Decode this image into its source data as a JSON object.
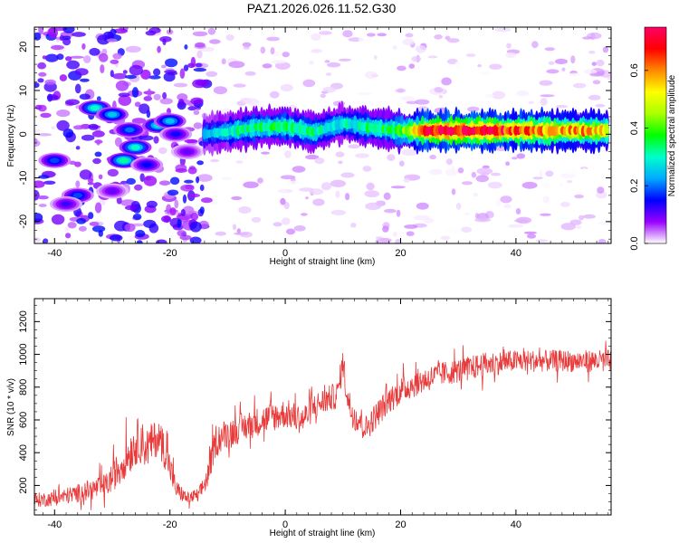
{
  "title": "PAZ1.2026.026.11.52.G30",
  "chart_data": [
    {
      "type": "heatmap",
      "title": "PAZ1.2026.026.11.52.G30",
      "xlabel": "Height of straight line (km)",
      "ylabel": "Frequency (Hz)",
      "xlim": [
        -43.5,
        56.5
      ],
      "ylim": [
        -25,
        24.5
      ],
      "xticks": [
        -40,
        -20,
        0,
        20,
        40
      ],
      "xtick_labels": [
        "-40",
        "-20",
        "0",
        "20",
        "40"
      ],
      "yticks": [
        -20,
        -10,
        0,
        10,
        20
      ],
      "ytick_labels": [
        "-20",
        "-10",
        "0",
        "10",
        "20"
      ],
      "colorbar": {
        "label": "Normalized spectral amplitude",
        "range": [
          0,
          0.75
        ],
        "ticks": [
          0.0,
          0.2,
          0.4,
          0.6
        ],
        "tick_labels": [
          "0.0",
          "0.2",
          "0.4",
          "0.6"
        ],
        "colors": [
          "#ffffff",
          "#9900ff",
          "#0000ff",
          "#00aaff",
          "#00ffcc",
          "#00ff00",
          "#aaff00",
          "#ffff00",
          "#ff8800",
          "#ff0000",
          "#ff0066"
        ]
      },
      "ridge": {
        "description": "dominant frequency trace",
        "points": [
          [
            -14,
            0
          ],
          [
            -10,
            0.6
          ],
          [
            -5,
            1.5
          ],
          [
            0,
            1.8
          ],
          [
            5,
            0.5
          ],
          [
            10,
            2.5
          ],
          [
            15,
            1.5
          ],
          [
            20,
            0.8
          ],
          [
            25,
            0.8
          ],
          [
            35,
            0.8
          ],
          [
            45,
            0.8
          ],
          [
            56,
            0.8
          ]
        ],
        "peak_amplitude": [
          [
            -14,
            0.22
          ],
          [
            -8,
            0.32
          ],
          [
            0,
            0.35
          ],
          [
            10,
            0.28
          ],
          [
            20,
            0.38
          ],
          [
            25,
            0.7
          ],
          [
            35,
            0.72
          ],
          [
            45,
            0.6
          ],
          [
            56,
            0.55
          ]
        ]
      },
      "blobs": [
        {
          "x": -33,
          "y": 6,
          "amp": 0.3
        },
        {
          "x": -30,
          "y": 4.5,
          "amp": 0.25
        },
        {
          "x": -27,
          "y": 1,
          "amp": 0.2
        },
        {
          "x": -22,
          "y": 2,
          "amp": 0.28
        },
        {
          "x": -20,
          "y": 3,
          "amp": 0.25
        },
        {
          "x": -26,
          "y": -3,
          "amp": 0.3
        },
        {
          "x": -28,
          "y": -6,
          "amp": 0.32
        },
        {
          "x": -40,
          "y": -6,
          "amp": 0.18
        },
        {
          "x": -36,
          "y": -14,
          "amp": 0.18
        },
        {
          "x": -38,
          "y": -16,
          "amp": 0.12
        },
        {
          "x": -30,
          "y": -13,
          "amp": 0.1
        },
        {
          "x": -24,
          "y": -7,
          "amp": 0.15
        },
        {
          "x": -19,
          "y": 0,
          "amp": 0.14
        },
        {
          "x": -17,
          "y": -4,
          "amp": 0.1
        }
      ]
    },
    {
      "type": "line",
      "xlabel": "Height of straight line (km)",
      "ylabel": "SNR (10 * v/v)",
      "xlim": [
        -43.5,
        56.5
      ],
      "ylim": [
        20,
        1340
      ],
      "xticks": [
        -40,
        -20,
        0,
        20,
        40
      ],
      "xtick_labels": [
        "-40",
        "-20",
        "0",
        "20",
        "40"
      ],
      "yticks": [
        200,
        400,
        600,
        800,
        1000,
        1200
      ],
      "ytick_labels": [
        "200",
        "400",
        "600",
        "800",
        "1000",
        "1200"
      ],
      "series": [
        {
          "name": "SNR",
          "color": "#e83a3a",
          "x": [
            -43.5,
            -40,
            -35,
            -31,
            -29,
            -27,
            -25.5,
            -24,
            -22,
            -20.5,
            -19,
            -17,
            -15,
            -13.5,
            -12,
            -10,
            -7,
            -4,
            0,
            3,
            5,
            7,
            9,
            10,
            11,
            12,
            13,
            14,
            16,
            18,
            20,
            23,
            27,
            30,
            35,
            40,
            45,
            50,
            56.5
          ],
          "mean": [
            110,
            120,
            160,
            200,
            300,
            400,
            480,
            430,
            500,
            380,
            180,
            120,
            140,
            250,
            480,
            520,
            560,
            600,
            640,
            600,
            680,
            720,
            750,
            950,
            700,
            620,
            600,
            550,
            640,
            720,
            780,
            830,
            880,
            900,
            940,
            960,
            960,
            960,
            960
          ],
          "noise": [
            60,
            60,
            80,
            100,
            140,
            170,
            180,
            170,
            150,
            150,
            80,
            50,
            60,
            100,
            130,
            120,
            120,
            120,
            120,
            120,
            110,
            110,
            110,
            120,
            130,
            120,
            120,
            110,
            110,
            110,
            110,
            110,
            100,
            100,
            100,
            90,
            90,
            90,
            90
          ]
        }
      ]
    }
  ]
}
